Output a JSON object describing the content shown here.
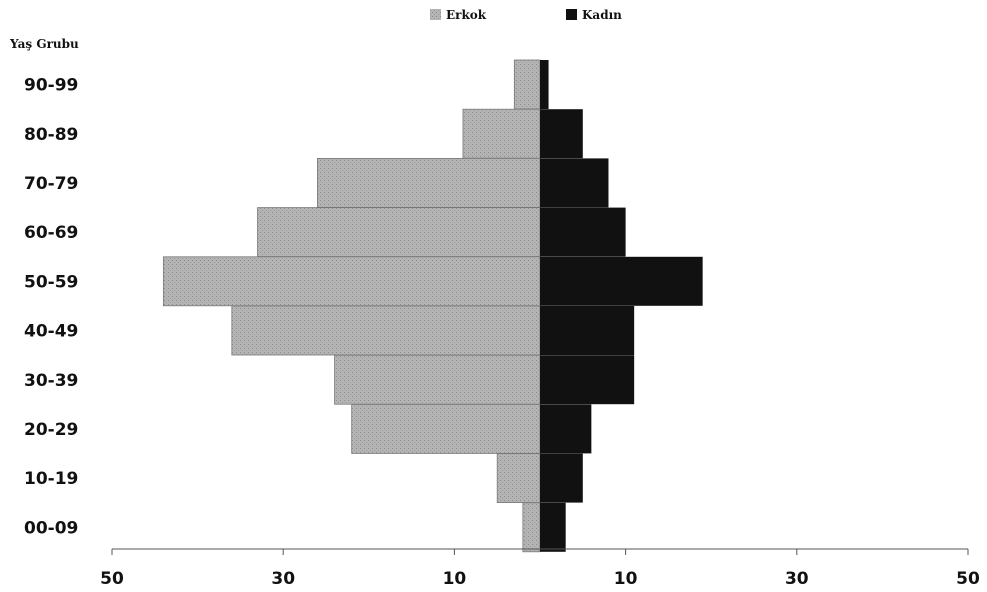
{
  "chart_data": {
    "type": "bar",
    "orientation": "horizontal-population-pyramid",
    "ylabel": "Yaş Grubu",
    "categories": [
      "90-99",
      "80-89",
      "70-79",
      "60-69",
      "50-59",
      "40-49",
      "30-39",
      "20-29",
      "10-19",
      "00-09"
    ],
    "series": [
      {
        "name": "Erkok",
        "side": "left",
        "color": "#b4b4b4",
        "values": [
          3,
          9,
          26,
          33,
          44,
          36,
          24,
          22,
          5,
          2
        ]
      },
      {
        "name": "Kadın",
        "side": "right",
        "color": "#111111",
        "values": [
          1,
          5,
          8,
          10,
          19,
          11,
          11,
          6,
          5,
          3
        ]
      }
    ],
    "x_ticks": [
      {
        "label": "50",
        "value": -50
      },
      {
        "label": "30",
        "value": -30
      },
      {
        "label": "10",
        "value": -10
      },
      {
        "label": "10",
        "value": 10
      },
      {
        "label": "30",
        "value": 30
      },
      {
        "label": "50",
        "value": 50
      }
    ],
    "xlim": [
      -50,
      50
    ],
    "legend_position": "top-center",
    "grid": false
  }
}
